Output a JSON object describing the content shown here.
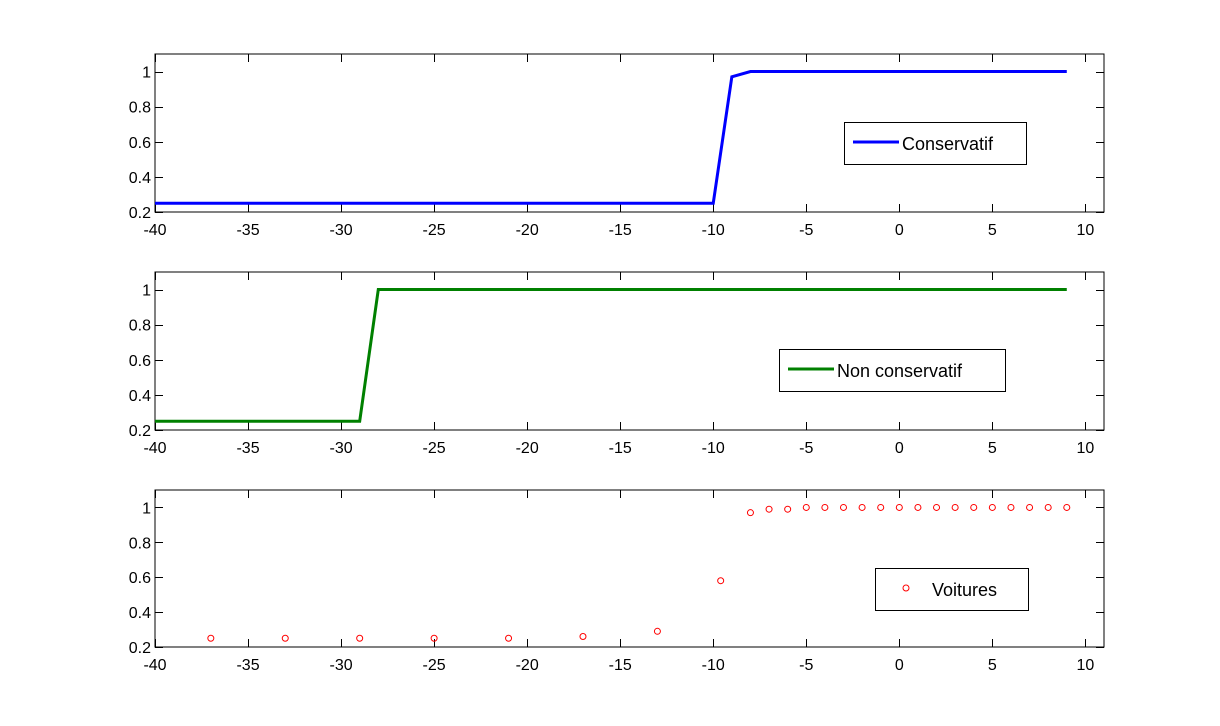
{
  "chart_data": [
    {
      "type": "line",
      "title": "",
      "xlabel": "",
      "ylabel": "",
      "xlim": [
        -40,
        11
      ],
      "ylim": [
        0.2,
        1.1
      ],
      "xticks": [
        -40,
        -35,
        -30,
        -25,
        -20,
        -15,
        -10,
        -5,
        0,
        5,
        10
      ],
      "yticks": [
        0.2,
        0.4,
        0.6,
        0.8,
        1
      ],
      "grid": false,
      "legend_position": "right",
      "series": [
        {
          "name": "Conservatif",
          "color": "#0000ff",
          "marker": "none",
          "x": [
            -40,
            -10,
            -9,
            -8,
            9
          ],
          "y": [
            0.25,
            0.25,
            0.97,
            1.0,
            1.0
          ]
        }
      ]
    },
    {
      "type": "line",
      "title": "",
      "xlabel": "",
      "ylabel": "",
      "xlim": [
        -40,
        11
      ],
      "ylim": [
        0.2,
        1.1
      ],
      "xticks": [
        -40,
        -35,
        -30,
        -25,
        -20,
        -15,
        -10,
        -5,
        0,
        5,
        10
      ],
      "yticks": [
        0.2,
        0.4,
        0.6,
        0.8,
        1
      ],
      "grid": false,
      "legend_position": "right",
      "series": [
        {
          "name": "Non conservatif",
          "color": "#008000",
          "marker": "none",
          "x": [
            -40,
            -29,
            -28,
            9
          ],
          "y": [
            0.25,
            0.25,
            1.0,
            1.0
          ]
        }
      ]
    },
    {
      "type": "scatter",
      "title": "",
      "xlabel": "",
      "ylabel": "",
      "xlim": [
        -40,
        11
      ],
      "ylim": [
        0.2,
        1.1
      ],
      "xticks": [
        -40,
        -35,
        -30,
        -25,
        -20,
        -15,
        -10,
        -5,
        0,
        5,
        10
      ],
      "yticks": [
        0.2,
        0.4,
        0.6,
        0.8,
        1
      ],
      "grid": false,
      "legend_position": "bottom-right",
      "series": [
        {
          "name": "Voitures",
          "color": "#ff0000",
          "marker": "circle",
          "x": [
            -37,
            -33,
            -29,
            -25,
            -21,
            -17,
            -13,
            -9.6,
            -8,
            -7,
            -6,
            -5,
            -4,
            -3,
            -2,
            -1,
            0,
            1,
            2,
            3,
            4,
            5,
            6,
            7,
            8,
            9
          ],
          "y": [
            0.25,
            0.25,
            0.25,
            0.25,
            0.25,
            0.26,
            0.29,
            0.58,
            0.97,
            0.99,
            0.99,
            1.0,
            1.0,
            1.0,
            1.0,
            1.0,
            1.0,
            1.0,
            1.0,
            1.0,
            1.0,
            1.0,
            1.0,
            1.0,
            1.0,
            1.0
          ]
        }
      ]
    }
  ]
}
